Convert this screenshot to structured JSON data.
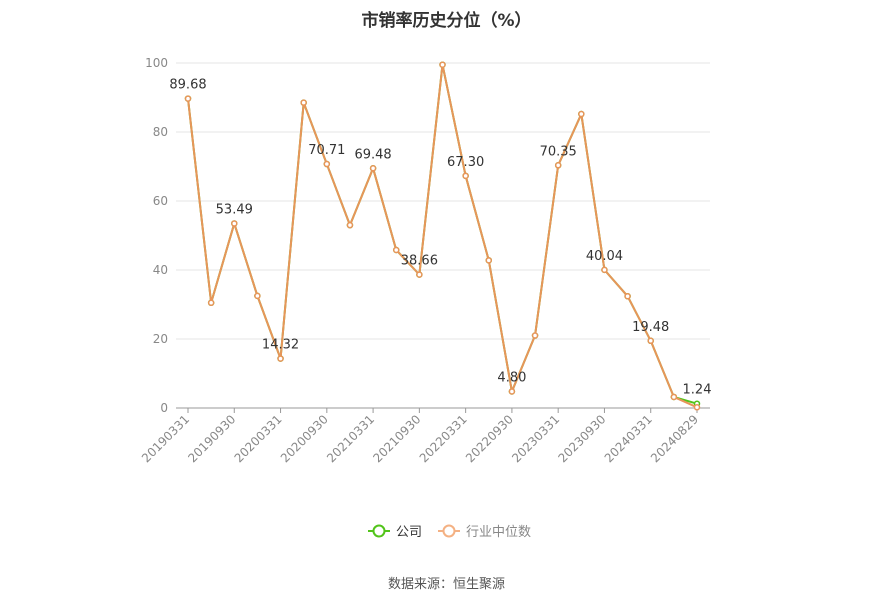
{
  "title": "市销率历史分位（%）",
  "source_text": "数据来源：恒生聚源",
  "legend": [
    {
      "label": "公司",
      "color": "#52c41a"
    },
    {
      "label": "行业中位数",
      "color": "#f4b183"
    }
  ],
  "chart_data": {
    "type": "line",
    "title": "市销率历史分位（%）",
    "xlabel": "",
    "ylabel": "",
    "ylim": [
      0,
      100
    ],
    "yticks": [
      0,
      20,
      40,
      60,
      80,
      100
    ],
    "grid": true,
    "legend_position": "bottom",
    "x": [
      "20190331",
      "20190630",
      "20190930",
      "20191231",
      "20200331",
      "20200630",
      "20200930",
      "20201231",
      "20210331",
      "20210630",
      "20210930",
      "20211231",
      "20220331",
      "20220630",
      "20220930",
      "20221231",
      "20230331",
      "20230630",
      "20230930",
      "20231231",
      "20240331",
      "20240630",
      "20240829"
    ],
    "xtick_labels": [
      "20190331",
      "20190930",
      "20200331",
      "20200930",
      "20210331",
      "20210930",
      "20220331",
      "20220930",
      "20230331",
      "20230930",
      "20240331",
      "20240829"
    ],
    "series": [
      {
        "name": "公司",
        "color": "#52c41a",
        "values": [
          89.68,
          30.5,
          53.49,
          32.5,
          14.32,
          88.5,
          70.71,
          53.0,
          69.48,
          45.8,
          38.66,
          99.5,
          67.3,
          42.8,
          4.8,
          21.0,
          70.35,
          85.2,
          40.04,
          32.4,
          19.48,
          3.2,
          1.24
        ]
      },
      {
        "name": "行业中位数",
        "color": "#e8955a",
        "values": [
          89.68,
          30.5,
          53.49,
          32.5,
          14.32,
          88.5,
          70.71,
          53.0,
          69.48,
          45.8,
          38.66,
          99.5,
          67.3,
          42.8,
          4.8,
          21.0,
          70.35,
          85.2,
          40.04,
          32.4,
          19.48,
          3.2,
          0.2
        ]
      }
    ],
    "data_labels": [
      {
        "index": 0,
        "text": "89.68"
      },
      {
        "index": 2,
        "text": "53.49"
      },
      {
        "index": 4,
        "text": "14.32"
      },
      {
        "index": 6,
        "text": "70.71"
      },
      {
        "index": 8,
        "text": "69.48"
      },
      {
        "index": 10,
        "text": "38.66"
      },
      {
        "index": 12,
        "text": "67.30"
      },
      {
        "index": 14,
        "text": "4.80"
      },
      {
        "index": 16,
        "text": "70.35"
      },
      {
        "index": 18,
        "text": "40.04"
      },
      {
        "index": 20,
        "text": "19.48"
      },
      {
        "index": 22,
        "text": "1.24"
      }
    ]
  }
}
